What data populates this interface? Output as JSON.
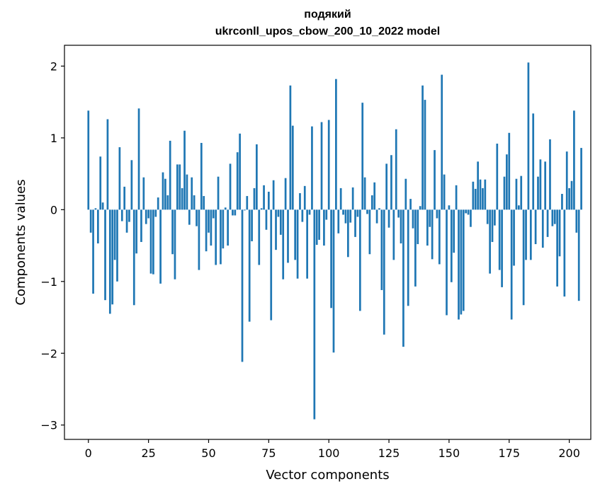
{
  "chart_data": {
    "type": "bar",
    "title": [
      "подякий",
      "ukrconll_upos_cbow_200_10_2022 model"
    ],
    "xlabel": "Vector components",
    "ylabel": "Components values",
    "xlim": [
      -9.95,
      208.95
    ],
    "ylim": [
      -3.2,
      2.29
    ],
    "xticks": [
      0,
      25,
      50,
      75,
      100,
      125,
      150,
      175,
      200
    ],
    "yticks": [
      -3,
      -2,
      -1,
      0,
      1,
      2
    ],
    "ytick_labels": [
      "−3",
      "−2",
      "−1",
      "0",
      "1",
      "2"
    ],
    "grid": false,
    "color": "#1f77b4",
    "values": [
      1.38,
      -0.32,
      -1.17,
      0.02,
      -0.47,
      0.74,
      0.1,
      -1.26,
      1.26,
      -1.45,
      -1.32,
      -0.7,
      -1.0,
      0.87,
      -0.16,
      0.32,
      -0.32,
      -0.17,
      0.69,
      -1.33,
      -0.61,
      1.41,
      -0.45,
      0.45,
      -0.2,
      -0.12,
      -0.89,
      -0.9,
      -0.1,
      0.17,
      -1.03,
      0.52,
      0.43,
      0.2,
      0.96,
      -0.62,
      -0.97,
      0.63,
      0.63,
      0.3,
      1.1,
      0.49,
      -0.21,
      0.45,
      0.2,
      -0.23,
      -0.84,
      0.93,
      0.19,
      -0.58,
      -0.32,
      -0.5,
      -0.12,
      -0.77,
      0.46,
      -0.76,
      -0.54,
      0.03,
      -0.5,
      0.64,
      -0.08,
      -0.08,
      0.8,
      1.06,
      -2.12,
      -0.01,
      0.19,
      -1.56,
      -0.44,
      0.3,
      0.91,
      -0.77,
      0.02,
      0.34,
      -0.28,
      0.25,
      -1.54,
      0.41,
      -0.56,
      -0.1,
      -0.35,
      -0.97,
      0.44,
      -0.74,
      1.73,
      1.17,
      -0.7,
      -0.96,
      0.23,
      -0.17,
      0.33,
      -0.96,
      -0.07,
      1.16,
      -2.92,
      -0.49,
      -0.42,
      1.22,
      -0.5,
      -0.14,
      1.25,
      -1.37,
      -1.99,
      1.82,
      -0.33,
      0.3,
      -0.07,
      -0.19,
      -0.66,
      -0.18,
      0.31,
      -0.38,
      -0.1,
      -1.41,
      1.49,
      0.45,
      -0.06,
      -0.62,
      0.2,
      0.38,
      -0.19,
      0.02,
      -1.12,
      -1.74,
      0.64,
      -0.25,
      0.76,
      -0.7,
      1.12,
      -0.11,
      -0.47,
      -1.91,
      0.43,
      -1.34,
      0.15,
      -0.26,
      -1.07,
      -0.48,
      0.05,
      1.73,
      1.53,
      -0.5,
      -0.24,
      -0.69,
      0.83,
      -0.12,
      -0.76,
      1.88,
      0.49,
      -1.47,
      0.06,
      -1.01,
      -0.6,
      0.34,
      -1.53,
      -1.46,
      -1.41,
      -0.05,
      -0.07,
      -0.24,
      0.39,
      0.29,
      0.67,
      0.42,
      0.3,
      0.42,
      -0.2,
      -0.89,
      -0.45,
      -0.22,
      0.92,
      -0.84,
      -1.08,
      0.46,
      0.77,
      1.07,
      -1.53,
      -0.78,
      0.43,
      0.06,
      0.47,
      -1.33,
      -0.7,
      2.05,
      -0.7,
      1.34,
      -0.48,
      0.46,
      0.7,
      -0.53,
      0.67,
      -0.38,
      0.98,
      -0.23,
      -0.2,
      -1.07,
      -0.65,
      0.22,
      -1.21,
      0.81,
      0.3,
      0.4,
      1.38,
      -0.32,
      -1.27,
      0.86
    ]
  }
}
